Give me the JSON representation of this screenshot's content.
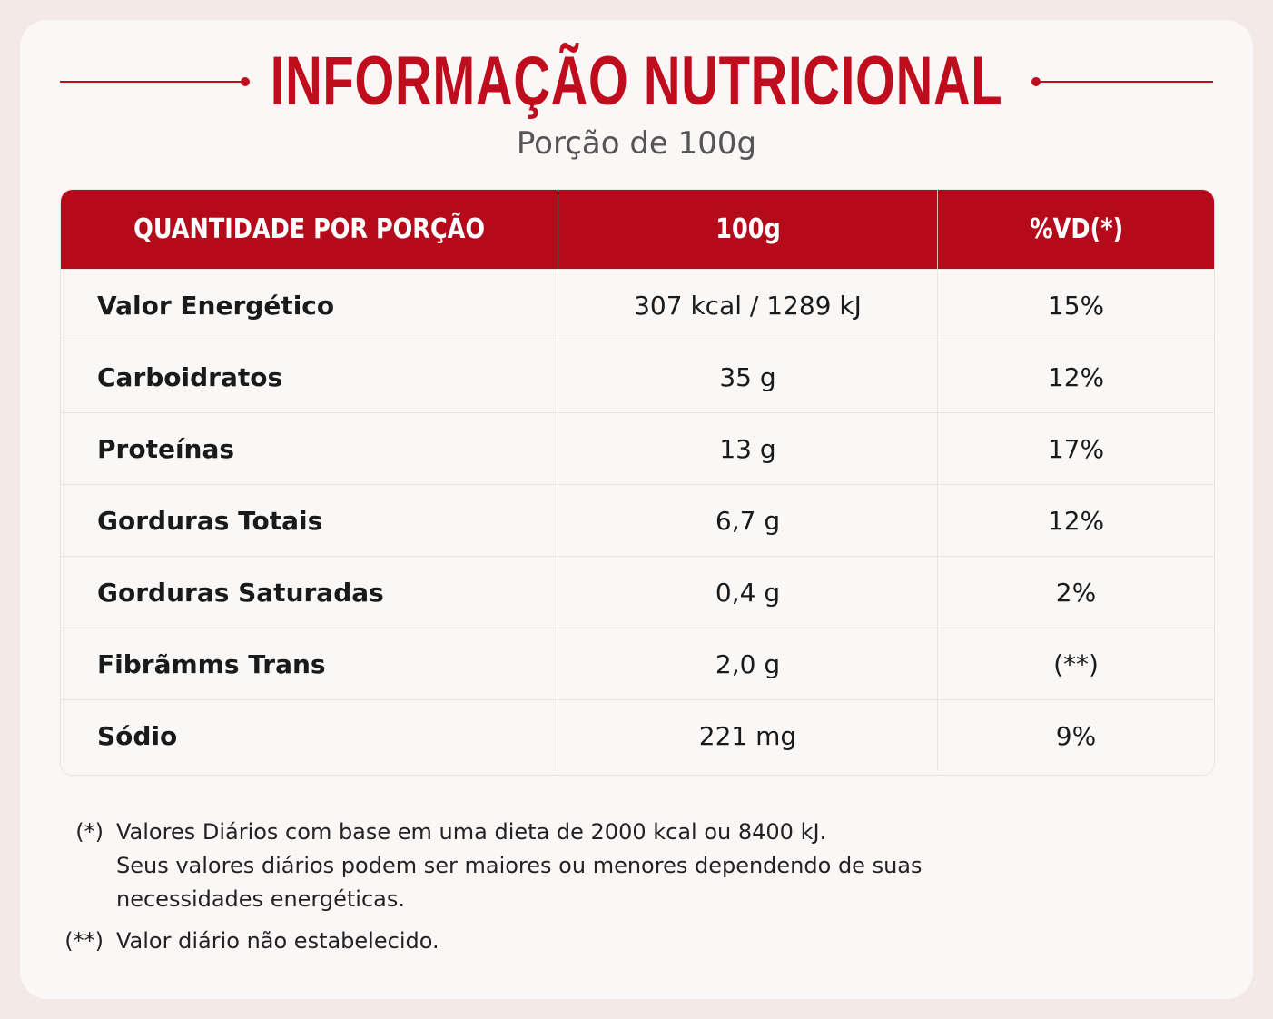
{
  "title": "INFORMAÇÃO NUTRICIONAL",
  "subtitle": "Porção de 100g",
  "table": {
    "header": [
      "QUANTIDADE POR PORÇÃO",
      "100g",
      "%VD(*)"
    ],
    "rows": [
      [
        "Valor Energético",
        "307 kcal / 1289 kJ",
        "15%"
      ],
      [
        "Carboidratos",
        "35 g",
        "12%"
      ],
      [
        "Proteínas",
        "13 g",
        "17%"
      ],
      [
        "Gorduras Totais",
        "6,7 g",
        "12%"
      ],
      [
        "Gorduras Saturadas",
        "0,4 g",
        "2%"
      ],
      [
        "Fibrãmms Trans",
        "2,0 g",
        "(**)"
      ],
      [
        "Sódio",
        "221 mg",
        "9%"
      ]
    ]
  },
  "footnotes": [
    {
      "marker": "(*)",
      "lines": [
        "Valores Diários com base em uma dieta de 2000 kcal ou 8400 kJ.",
        "Seus valores diários podem ser maiores ou menores dependendo de suas",
        "necessidades energéticas."
      ]
    },
    {
      "marker": "(**)",
      "lines": [
        "Valor diário não estabelecido."
      ]
    }
  ]
}
